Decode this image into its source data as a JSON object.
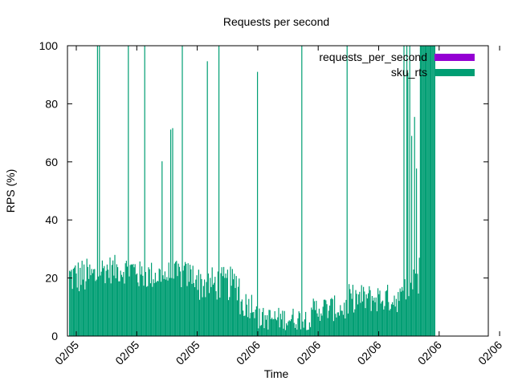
{
  "chart_data": {
    "type": "bar",
    "title": "Requests per second",
    "xlabel": "Time",
    "ylabel": "RPS (%)",
    "ylim": [
      0,
      100
    ],
    "y_ticks": [
      0,
      20,
      40,
      60,
      80,
      100
    ],
    "x_tick_labels": [
      "02/05",
      "02/05",
      "02/05",
      "02/06",
      "02/06",
      "02/06",
      "02/06",
      "02/06"
    ],
    "grid": false,
    "legend_position": "top-right",
    "series": [
      {
        "name": "requests_per_second",
        "legend_text": "requests_per_second",
        "color": "#9400d3",
        "values": []
      },
      {
        "name": "sku_rts",
        "legend_text": "sku_rts",
        "color": "#009e73",
        "values": []
      }
    ],
    "description_profile": {
      "segments": [
        {
          "from_tick": 0.0,
          "to_tick": 0.35,
          "base": 14,
          "upper": 27
        },
        {
          "from_tick": 0.35,
          "to_tick": 1.0,
          "base": 18,
          "upper": 28
        },
        {
          "from_tick": 1.0,
          "to_tick": 2.0,
          "base": 16,
          "upper": 26
        },
        {
          "from_tick": 2.0,
          "to_tick": 2.7,
          "base": 12,
          "upper": 24
        },
        {
          "from_tick": 2.7,
          "to_tick": 3.0,
          "base": 6,
          "upper": 16
        },
        {
          "from_tick": 3.0,
          "to_tick": 3.9,
          "base": 2,
          "upper": 10
        },
        {
          "from_tick": 3.9,
          "to_tick": 4.5,
          "base": 5,
          "upper": 14
        },
        {
          "from_tick": 4.5,
          "to_tick": 5.4,
          "base": 8,
          "upper": 18
        },
        {
          "from_tick": 5.4,
          "to_tick": 5.75,
          "base": 12,
          "upper": 28
        },
        {
          "from_tick": 5.75,
          "to_tick": 5.85,
          "base": 100,
          "upper": 100
        }
      ]
    }
  }
}
